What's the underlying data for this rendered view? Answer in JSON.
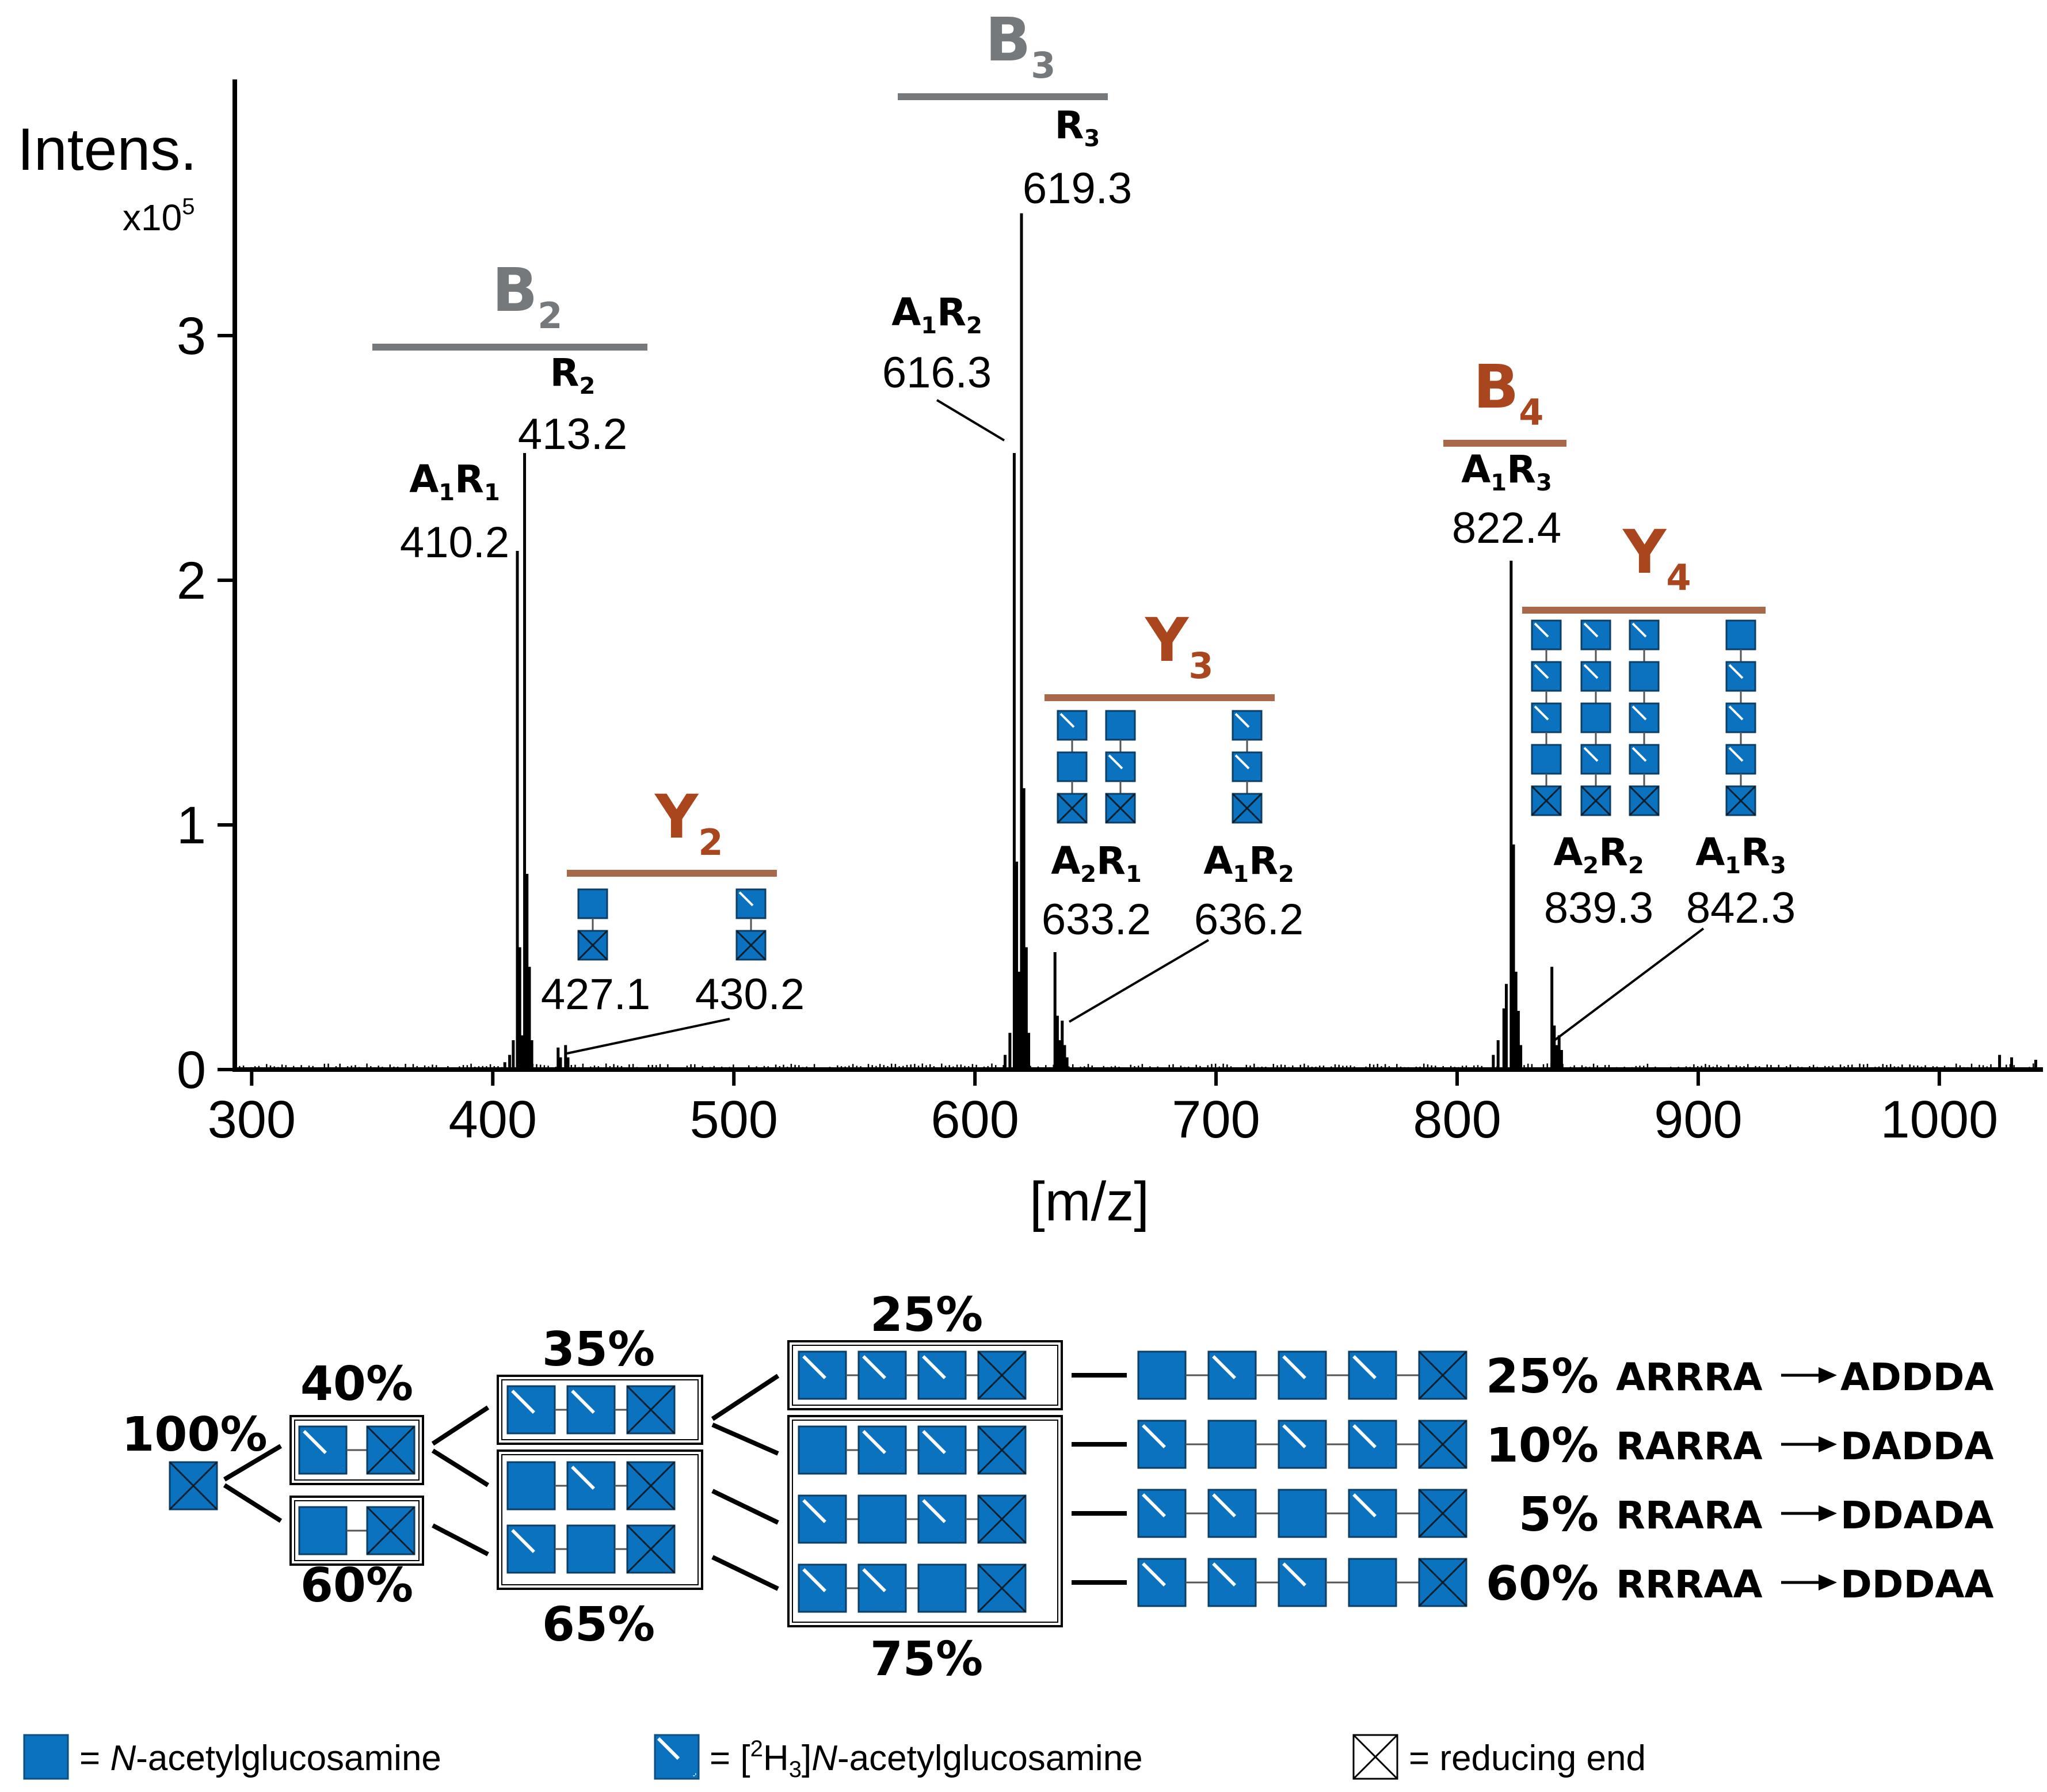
{
  "colors": {
    "glcnac": "#0a72be",
    "gray_bar": "#76797c",
    "brown_bar": "#a8684a",
    "brown_text": "#a9461d",
    "axis": "#000000"
  },
  "chart_data": {
    "type": "line",
    "title": "",
    "ylabel": "Intens.",
    "yunit": "x10",
    "yexp": "5",
    "xlabel": "[m/z]",
    "xlim": [
      293,
      1043
    ],
    "ylim": [
      0,
      4.0
    ],
    "xticks": [
      "300",
      "400",
      "500",
      "600",
      "700",
      "800",
      "900",
      "1000"
    ],
    "xtick_values": [
      300,
      400,
      500,
      600,
      700,
      800,
      900,
      1000
    ],
    "yticks": [
      "0",
      "1",
      "2",
      "3"
    ],
    "ytick_values": [
      0,
      1,
      2,
      3
    ],
    "peaks": [
      {
        "mz": 405,
        "i": 0.03
      },
      {
        "mz": 407,
        "i": 0.06
      },
      {
        "mz": 408.5,
        "i": 0.12
      },
      {
        "mz": 410.2,
        "i": 2.12
      },
      {
        "mz": 411.2,
        "i": 0.5
      },
      {
        "mz": 412.2,
        "i": 0.14
      },
      {
        "mz": 413.2,
        "i": 2.52
      },
      {
        "mz": 414.2,
        "i": 0.8
      },
      {
        "mz": 415.2,
        "i": 0.42
      },
      {
        "mz": 416.2,
        "i": 0.12
      },
      {
        "mz": 427.1,
        "i": 0.09
      },
      {
        "mz": 428.1,
        "i": 0.05
      },
      {
        "mz": 430.2,
        "i": 0.1
      },
      {
        "mz": 431.2,
        "i": 0.05
      },
      {
        "mz": 612.5,
        "i": 0.06
      },
      {
        "mz": 614.5,
        "i": 0.15
      },
      {
        "mz": 616.3,
        "i": 2.52
      },
      {
        "mz": 617.3,
        "i": 0.85
      },
      {
        "mz": 618.3,
        "i": 0.4
      },
      {
        "mz": 619.3,
        "i": 3.5
      },
      {
        "mz": 620.3,
        "i": 1.15
      },
      {
        "mz": 621.3,
        "i": 0.5
      },
      {
        "mz": 622.3,
        "i": 0.15
      },
      {
        "mz": 633.2,
        "i": 0.48
      },
      {
        "mz": 634.2,
        "i": 0.22
      },
      {
        "mz": 635.2,
        "i": 0.12
      },
      {
        "mz": 636.2,
        "i": 0.2
      },
      {
        "mz": 637.2,
        "i": 0.1
      },
      {
        "mz": 638.2,
        "i": 0.05
      },
      {
        "mz": 815,
        "i": 0.06
      },
      {
        "mz": 817,
        "i": 0.12
      },
      {
        "mz": 819.4,
        "i": 0.25
      },
      {
        "mz": 820.4,
        "i": 0.35
      },
      {
        "mz": 822.4,
        "i": 2.08
      },
      {
        "mz": 823.4,
        "i": 0.92
      },
      {
        "mz": 824.4,
        "i": 0.4
      },
      {
        "mz": 825.4,
        "i": 0.24
      },
      {
        "mz": 826.4,
        "i": 0.1
      },
      {
        "mz": 839.3,
        "i": 0.42
      },
      {
        "mz": 840.3,
        "i": 0.18
      },
      {
        "mz": 841.3,
        "i": 0.1
      },
      {
        "mz": 842.3,
        "i": 0.14
      },
      {
        "mz": 843.3,
        "i": 0.08
      },
      {
        "mz": 1025,
        "i": 0.06
      },
      {
        "mz": 1030,
        "i": 0.05
      },
      {
        "mz": 1040,
        "i": 0.04
      }
    ],
    "peak_labels": [
      {
        "top": "A",
        "s1": "1",
        "mid": "R",
        "s2": "1",
        "value": "410.2"
      },
      {
        "top": "",
        "s1": "",
        "mid": "R",
        "s2": "2",
        "value": "413.2"
      },
      {
        "top": "A",
        "s1": "1",
        "mid": "R",
        "s2": "2",
        "value": "616.3"
      },
      {
        "top": "",
        "s1": "",
        "mid": "R",
        "s2": "3",
        "value": "619.3"
      },
      {
        "top": "A",
        "s1": "2",
        "mid": "R",
        "s2": "1",
        "value": "633.2"
      },
      {
        "top": "A",
        "s1": "1",
        "mid": "R",
        "s2": "2",
        "value": "636.2"
      },
      {
        "top": "A",
        "s1": "1",
        "mid": "R",
        "s2": "3",
        "value": "822.4"
      },
      {
        "top": "A",
        "s1": "2",
        "mid": "R",
        "s2": "2",
        "value": "839.3"
      },
      {
        "top": "A",
        "s1": "1",
        "mid": "R",
        "s2": "3",
        "value": "842.3"
      },
      {
        "top": "",
        "s1": "",
        "mid": "",
        "s2": "",
        "value": "427.1"
      },
      {
        "top": "",
        "s1": "",
        "mid": "",
        "s2": "",
        "value": "430.2"
      }
    ],
    "ion_groups": [
      {
        "letter": "B",
        "sub": "2",
        "color": "gray"
      },
      {
        "letter": "Y",
        "sub": "2",
        "color": "brown"
      },
      {
        "letter": "B",
        "sub": "3",
        "color": "gray"
      },
      {
        "letter": "Y",
        "sub": "3",
        "color": "brown"
      },
      {
        "letter": "B",
        "sub": "4",
        "color": "brown"
      },
      {
        "letter": "Y",
        "sub": "4",
        "color": "brown"
      }
    ]
  },
  "tree": {
    "root_pct": "100%",
    "level2": [
      {
        "pct": "40%",
        "units": [
          "D",
          "X"
        ]
      },
      {
        "pct": "60%",
        "units": [
          "A",
          "X"
        ]
      }
    ],
    "level3": [
      {
        "pct": "35%",
        "units": [
          "D",
          "D",
          "X"
        ]
      },
      {
        "pct": "65%",
        "units": [
          [
            "A",
            "D",
            "X"
          ],
          [
            "D",
            "A",
            "X"
          ]
        ]
      }
    ],
    "level4": [
      {
        "pct": "25%",
        "units": [
          "D",
          "D",
          "D",
          "X"
        ]
      },
      {
        "pct": "75%",
        "units": [
          [
            "A",
            "D",
            "D",
            "X"
          ],
          [
            "D",
            "A",
            "D",
            "X"
          ],
          [
            "D",
            "D",
            "A",
            "X"
          ]
        ]
      }
    ],
    "final": [
      {
        "units": [
          "A",
          "D",
          "D",
          "D",
          "X"
        ],
        "pct": "25%",
        "from": "ARRRA",
        "to": "ADDDA"
      },
      {
        "units": [
          "D",
          "A",
          "D",
          "D",
          "X"
        ],
        "pct": "10%",
        "from": "RARRA",
        "to": "DADDA"
      },
      {
        "units": [
          "D",
          "D",
          "A",
          "D",
          "X"
        ],
        "pct": "5%",
        "from": "RRARA",
        "to": "DDADA"
      },
      {
        "units": [
          "D",
          "D",
          "D",
          "A",
          "X"
        ],
        "pct": "60%",
        "from": "RRRAA",
        "to": "DDDAA"
      }
    ]
  },
  "legend": [
    {
      "pre": "= ",
      "italic": "N",
      "post": "-acetylglucosamine"
    },
    {
      "pre": "= [",
      "sup": "2",
      "mid": "H",
      "sub": "3",
      "close": "]",
      "italic": "N",
      "post": "-acetylglucosamine"
    },
    {
      "pre": "= reducing end"
    }
  ]
}
